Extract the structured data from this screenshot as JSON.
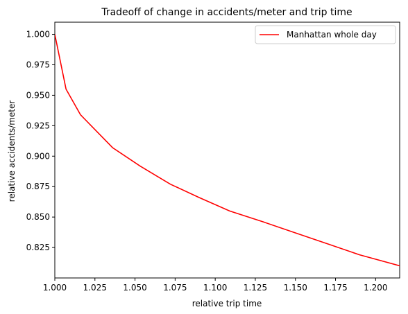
{
  "chart_data": {
    "type": "line",
    "title": "Tradeoff of change in accidents/meter and trip time",
    "xlabel": "relative trip time",
    "ylabel": "relative accidents/meter",
    "xlim": [
      1.0,
      1.215
    ],
    "ylim": [
      0.8,
      1.01
    ],
    "xticks": [
      {
        "value": 1.0,
        "label": "1.000"
      },
      {
        "value": 1.025,
        "label": "1.025"
      },
      {
        "value": 1.05,
        "label": "1.050"
      },
      {
        "value": 1.075,
        "label": "1.075"
      },
      {
        "value": 1.1,
        "label": "1.100"
      },
      {
        "value": 1.125,
        "label": "1.125"
      },
      {
        "value": 1.15,
        "label": "1.150"
      },
      {
        "value": 1.175,
        "label": "1.175"
      },
      {
        "value": 1.2,
        "label": "1.200"
      }
    ],
    "yticks": [
      {
        "value": 0.825,
        "label": "0.825"
      },
      {
        "value": 0.85,
        "label": "0.850"
      },
      {
        "value": 0.875,
        "label": "0.875"
      },
      {
        "value": 0.9,
        "label": "0.900"
      },
      {
        "value": 0.925,
        "label": "0.925"
      },
      {
        "value": 0.95,
        "label": "0.950"
      },
      {
        "value": 0.975,
        "label": "0.975"
      },
      {
        "value": 1.0,
        "label": "1.000"
      }
    ],
    "grid": false,
    "legend": "top-right",
    "series": [
      {
        "name": "Manhattan whole day",
        "color": "#ff0000",
        "x": [
          1.0,
          1.007,
          1.016,
          1.036,
          1.053,
          1.072,
          1.09,
          1.109,
          1.13,
          1.15,
          1.17,
          1.19,
          1.215
        ],
        "y": [
          1.0,
          0.955,
          0.934,
          0.907,
          0.892,
          0.877,
          0.866,
          0.855,
          0.846,
          0.837,
          0.828,
          0.819,
          0.81
        ]
      }
    ]
  }
}
